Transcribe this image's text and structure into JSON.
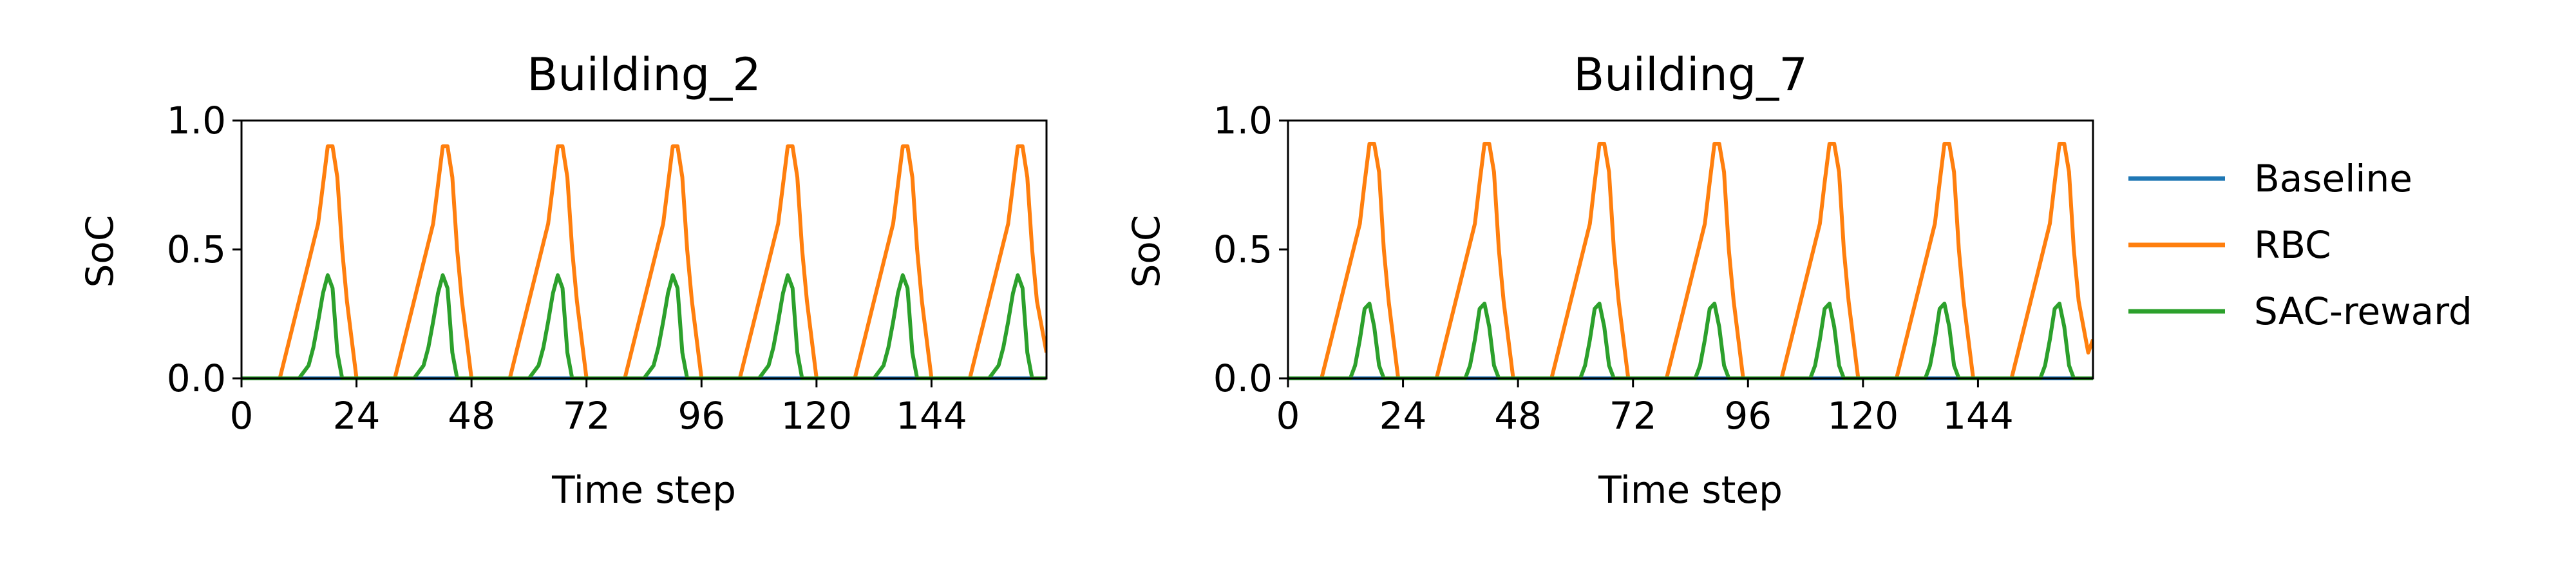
{
  "chart_data": [
    {
      "type": "line",
      "title": "Building_2",
      "xlabel": "Time step",
      "ylabel": "SoC",
      "xlim": [
        0,
        168
      ],
      "ylim": [
        0,
        1
      ],
      "xticks": [
        0,
        24,
        48,
        72,
        96,
        120,
        144
      ],
      "yticks": [
        0.0,
        0.5,
        1.0
      ],
      "yticklabels": [
        "0.0",
        "0.5",
        "1.0"
      ],
      "grid": false,
      "series": [
        {
          "name": "Baseline",
          "color": "#1f77b4",
          "x": [
            0,
            168
          ],
          "y": [
            0,
            0
          ]
        },
        {
          "name": "RBC",
          "color": "#ff7f0e",
          "x": [
            0,
            8,
            10,
            12,
            14,
            16,
            17,
            18,
            19,
            20,
            21,
            22,
            24,
            32,
            34,
            36,
            38,
            40,
            41,
            42,
            43,
            44,
            45,
            46,
            48,
            56,
            58,
            60,
            62,
            64,
            65,
            66,
            67,
            68,
            69,
            70,
            72,
            80,
            82,
            84,
            86,
            88,
            89,
            90,
            91,
            92,
            93,
            94,
            96,
            104,
            106,
            108,
            110,
            112,
            113,
            114,
            115,
            116,
            117,
            118,
            120,
            128,
            130,
            132,
            134,
            136,
            137,
            138,
            139,
            140,
            141,
            142,
            144,
            152,
            154,
            156,
            158,
            160,
            161,
            162,
            163,
            164,
            165,
            166,
            168
          ],
          "y": [
            0,
            0,
            0.15,
            0.3,
            0.45,
            0.6,
            0.75,
            0.9,
            0.9,
            0.78,
            0.5,
            0.3,
            0,
            0,
            0.15,
            0.3,
            0.45,
            0.6,
            0.75,
            0.9,
            0.9,
            0.78,
            0.5,
            0.3,
            0,
            0,
            0.15,
            0.3,
            0.45,
            0.6,
            0.75,
            0.9,
            0.9,
            0.78,
            0.5,
            0.3,
            0,
            0,
            0.15,
            0.3,
            0.45,
            0.6,
            0.75,
            0.9,
            0.9,
            0.78,
            0.5,
            0.3,
            0,
            0,
            0.15,
            0.3,
            0.45,
            0.6,
            0.75,
            0.9,
            0.9,
            0.78,
            0.5,
            0.3,
            0,
            0,
            0.15,
            0.3,
            0.45,
            0.6,
            0.75,
            0.9,
            0.9,
            0.78,
            0.5,
            0.3,
            0,
            0,
            0.15,
            0.3,
            0.45,
            0.6,
            0.75,
            0.9,
            0.9,
            0.78,
            0.5,
            0.3,
            0.1
          ]
        },
        {
          "name": "SAC-reward",
          "color": "#2ca02c",
          "x": [
            0,
            12,
            14,
            15,
            16,
            17,
            18,
            19,
            20,
            21,
            36,
            38,
            39,
            40,
            41,
            42,
            43,
            44,
            45,
            60,
            62,
            63,
            64,
            65,
            66,
            67,
            68,
            69,
            84,
            86,
            87,
            88,
            89,
            90,
            91,
            92,
            93,
            108,
            110,
            111,
            112,
            113,
            114,
            115,
            116,
            117,
            132,
            134,
            135,
            136,
            137,
            138,
            139,
            140,
            141,
            156,
            158,
            159,
            160,
            161,
            162,
            163,
            164,
            165,
            168
          ],
          "y": [
            0,
            0,
            0.05,
            0.12,
            0.22,
            0.33,
            0.4,
            0.35,
            0.1,
            0,
            0,
            0.05,
            0.12,
            0.22,
            0.33,
            0.4,
            0.35,
            0.1,
            0,
            0,
            0.05,
            0.12,
            0.22,
            0.33,
            0.4,
            0.35,
            0.1,
            0,
            0,
            0.05,
            0.12,
            0.22,
            0.33,
            0.4,
            0.35,
            0.1,
            0,
            0,
            0.05,
            0.12,
            0.22,
            0.33,
            0.4,
            0.35,
            0.1,
            0,
            0,
            0.05,
            0.12,
            0.22,
            0.33,
            0.4,
            0.35,
            0.1,
            0,
            0,
            0.05,
            0.12,
            0.22,
            0.33,
            0.4,
            0.35,
            0.1,
            0,
            0
          ]
        }
      ]
    },
    {
      "type": "line",
      "title": "Building_7",
      "xlabel": "Time step",
      "ylabel": "SoC",
      "xlim": [
        0,
        168
      ],
      "ylim": [
        0,
        1
      ],
      "xticks": [
        0,
        24,
        48,
        72,
        96,
        120,
        144
      ],
      "yticks": [
        0.0,
        0.5,
        1.0
      ],
      "yticklabels": [
        "0.0",
        "0.5",
        "1.0"
      ],
      "grid": false,
      "series": [
        {
          "name": "Baseline",
          "color": "#1f77b4",
          "x": [
            0,
            168
          ],
          "y": [
            0,
            0
          ]
        },
        {
          "name": "RBC",
          "color": "#ff7f0e",
          "x": [
            0,
            7,
            9,
            11,
            13,
            15,
            16,
            17,
            18,
            19,
            20,
            21,
            23,
            31,
            33,
            35,
            37,
            39,
            40,
            41,
            42,
            43,
            44,
            45,
            47,
            55,
            57,
            59,
            61,
            63,
            64,
            65,
            66,
            67,
            68,
            69,
            71,
            79,
            81,
            83,
            85,
            87,
            88,
            89,
            90,
            91,
            92,
            93,
            95,
            103,
            105,
            107,
            109,
            111,
            112,
            113,
            114,
            115,
            116,
            117,
            119,
            127,
            129,
            131,
            133,
            135,
            136,
            137,
            138,
            139,
            140,
            141,
            143,
            151,
            153,
            155,
            157,
            159,
            160,
            161,
            162,
            163,
            164,
            165,
            167,
            168
          ],
          "y": [
            0,
            0,
            0.15,
            0.3,
            0.45,
            0.6,
            0.76,
            0.91,
            0.91,
            0.8,
            0.5,
            0.3,
            0,
            0,
            0.15,
            0.3,
            0.45,
            0.6,
            0.76,
            0.91,
            0.91,
            0.8,
            0.5,
            0.3,
            0,
            0,
            0.15,
            0.3,
            0.45,
            0.6,
            0.76,
            0.91,
            0.91,
            0.8,
            0.5,
            0.3,
            0,
            0,
            0.15,
            0.3,
            0.45,
            0.6,
            0.76,
            0.91,
            0.91,
            0.8,
            0.5,
            0.3,
            0,
            0,
            0.15,
            0.3,
            0.45,
            0.6,
            0.76,
            0.91,
            0.91,
            0.8,
            0.5,
            0.3,
            0,
            0,
            0.15,
            0.3,
            0.45,
            0.6,
            0.76,
            0.91,
            0.91,
            0.8,
            0.5,
            0.3,
            0,
            0,
            0.15,
            0.3,
            0.45,
            0.6,
            0.76,
            0.91,
            0.91,
            0.8,
            0.5,
            0.3,
            0.1,
            0.15
          ]
        },
        {
          "name": "SAC-reward",
          "color": "#2ca02c",
          "x": [
            0,
            13,
            14,
            15,
            16,
            17,
            18,
            19,
            20,
            37,
            38,
            39,
            40,
            41,
            42,
            43,
            44,
            61,
            62,
            63,
            64,
            65,
            66,
            67,
            68,
            85,
            86,
            87,
            88,
            89,
            90,
            91,
            92,
            109,
            110,
            111,
            112,
            113,
            114,
            115,
            116,
            133,
            134,
            135,
            136,
            137,
            138,
            139,
            140,
            157,
            158,
            159,
            160,
            161,
            162,
            163,
            164,
            168
          ],
          "y": [
            0,
            0,
            0.05,
            0.15,
            0.27,
            0.29,
            0.2,
            0.05,
            0,
            0,
            0.05,
            0.15,
            0.27,
            0.29,
            0.2,
            0.05,
            0,
            0,
            0.05,
            0.15,
            0.27,
            0.29,
            0.2,
            0.05,
            0,
            0,
            0.05,
            0.15,
            0.27,
            0.29,
            0.2,
            0.05,
            0,
            0,
            0.05,
            0.15,
            0.27,
            0.29,
            0.2,
            0.05,
            0,
            0,
            0.05,
            0.15,
            0.27,
            0.29,
            0.2,
            0.05,
            0,
            0,
            0.05,
            0.15,
            0.27,
            0.29,
            0.2,
            0.05,
            0,
            0
          ]
        }
      ]
    }
  ],
  "legend": {
    "placement": "right",
    "items": [
      {
        "name": "Baseline",
        "color": "#1f77b4"
      },
      {
        "name": "RBC",
        "color": "#ff7f0e"
      },
      {
        "name": "SAC-reward",
        "color": "#2ca02c"
      }
    ]
  }
}
